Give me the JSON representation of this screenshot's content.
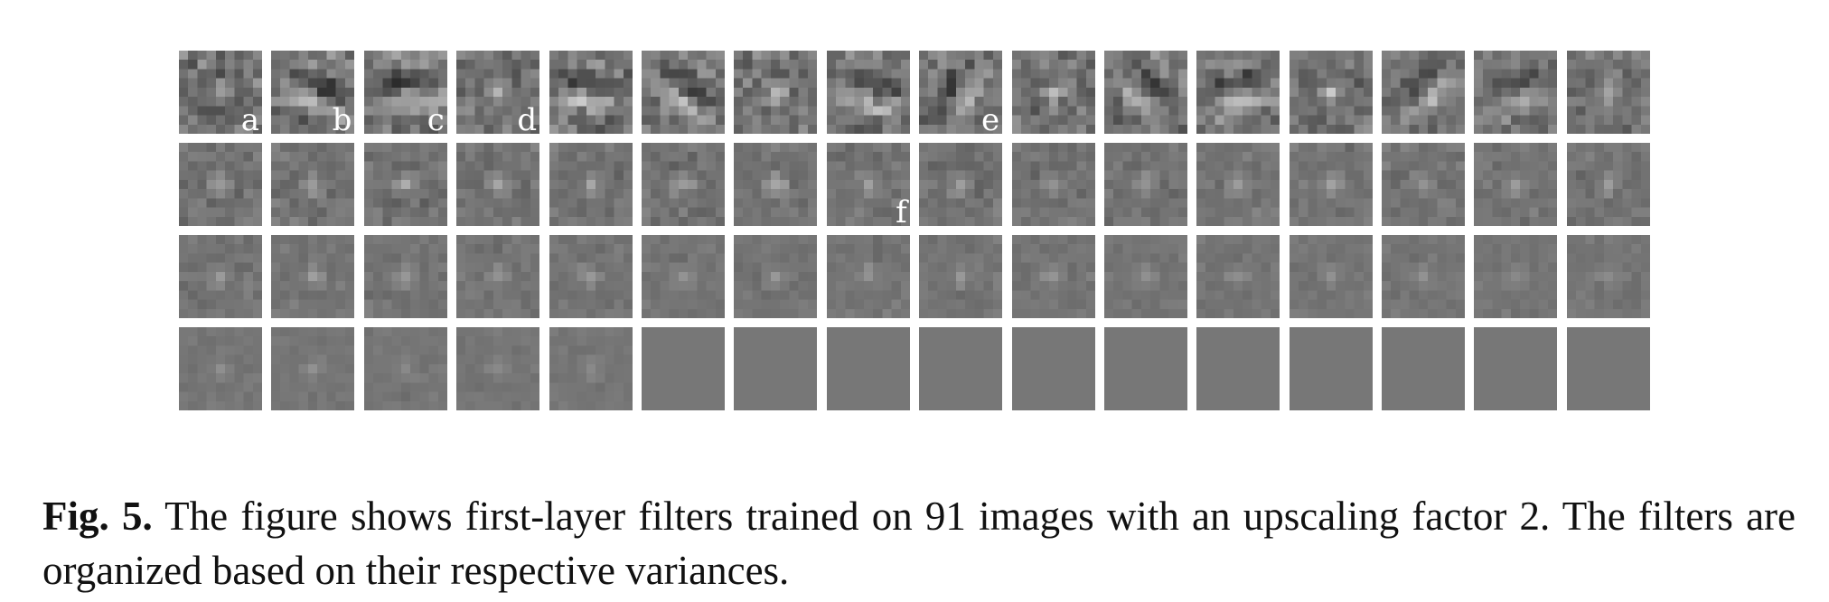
{
  "figure": {
    "rows": 4,
    "cols": 16,
    "filter_count": 64,
    "filter_kernel_size": 9,
    "labels": [
      {
        "text": "a",
        "row": 0,
        "col": 0
      },
      {
        "text": "b",
        "row": 0,
        "col": 1
      },
      {
        "text": "c",
        "row": 0,
        "col": 2
      },
      {
        "text": "d",
        "row": 0,
        "col": 3
      },
      {
        "text": "e",
        "row": 0,
        "col": 8
      },
      {
        "text": "f",
        "row": 1,
        "col": 7
      }
    ],
    "flat_filters_start_row": 3,
    "flat_filters_start_col": 5
  },
  "caption": {
    "label": "Fig. 5.",
    "text": "The figure shows first-layer filters trained on 91 images with an upscaling factor 2. The filters are organized based on their respective variances."
  },
  "colors": {
    "background": "#ffffff",
    "filter_mid_gray": "#777777",
    "label": "#ffffff"
  }
}
